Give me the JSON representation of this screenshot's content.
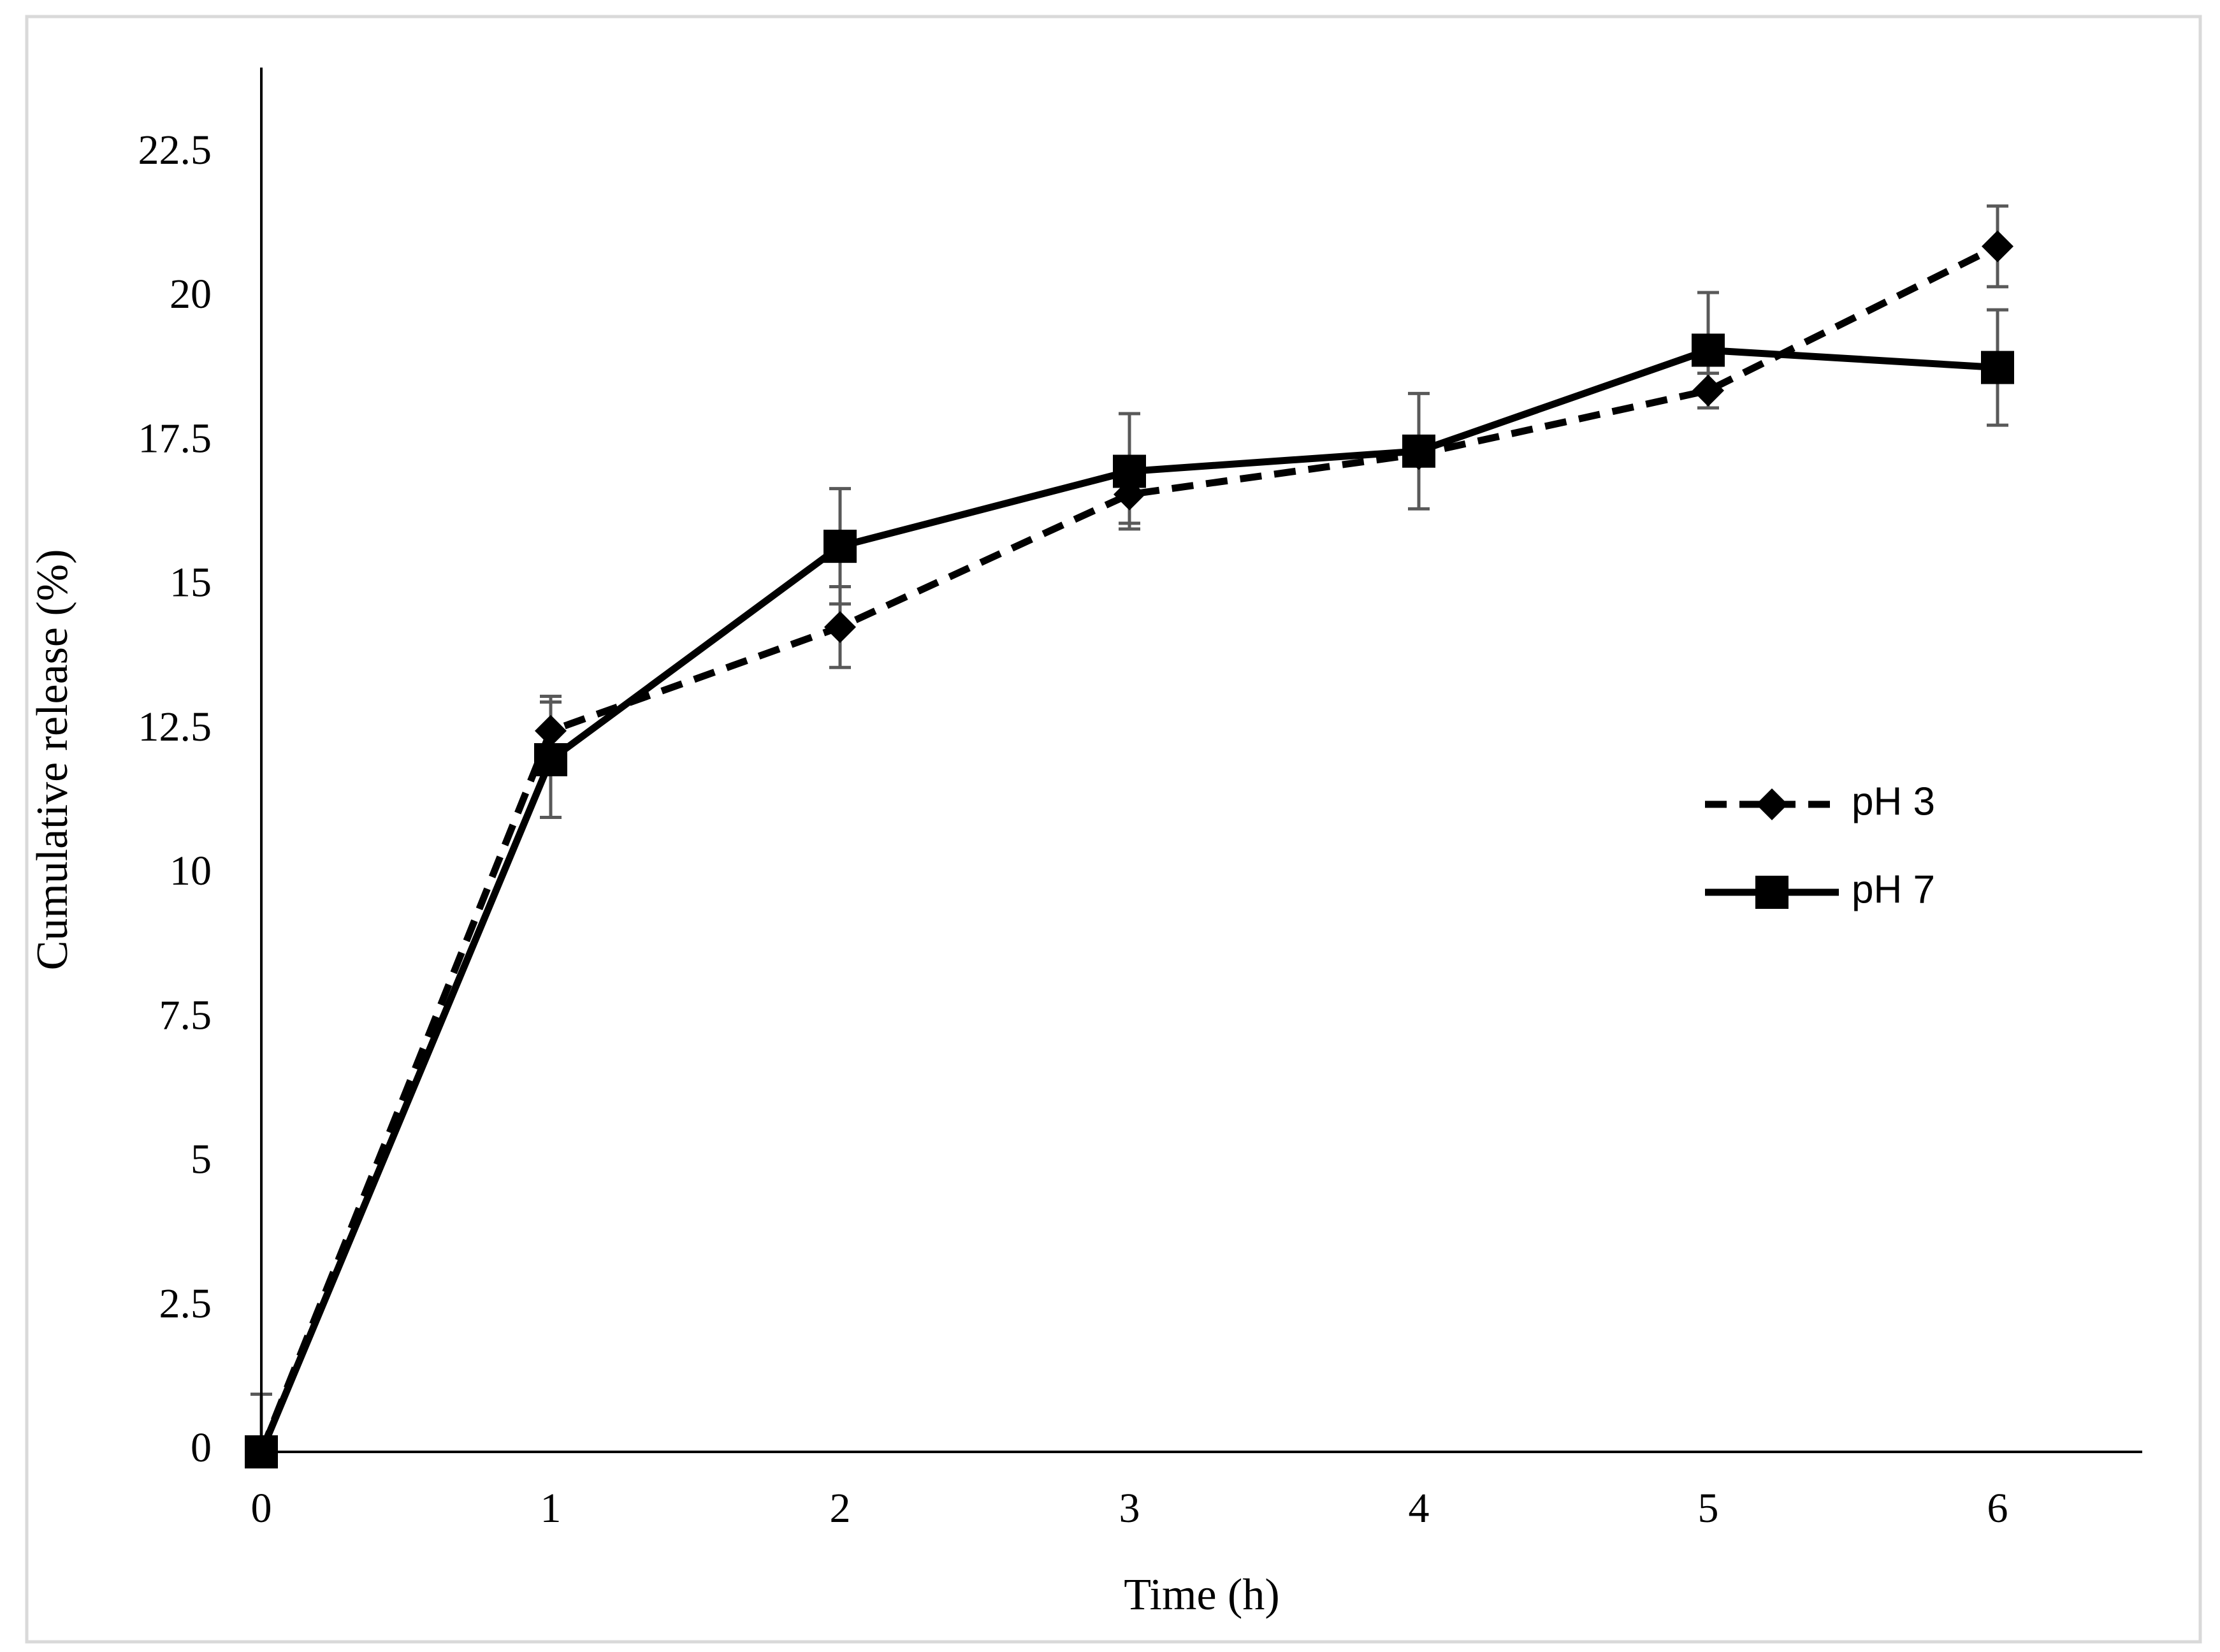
{
  "chart_data": {
    "type": "line",
    "title": "",
    "xlabel": "Time (h)",
    "ylabel": "Cumulative release (%)",
    "x": [
      0,
      1,
      2,
      3,
      4,
      5,
      6
    ],
    "xlim": [
      0,
      6.5
    ],
    "ylim": [
      0,
      24
    ],
    "yticks": [
      0,
      2.5,
      5,
      7.5,
      10,
      12.5,
      15,
      17.5,
      20,
      22.5
    ],
    "ytick_labels": [
      "0",
      "2.5",
      "5",
      "7.5",
      "10",
      "12.5",
      "15",
      "17.5",
      "20",
      "22.5"
    ],
    "xtick_labels": [
      "0",
      "1",
      "2",
      "3",
      "4",
      "5",
      "6"
    ],
    "grid": false,
    "legend_position": "right",
    "series": [
      {
        "name": "pH 3",
        "line_style": "dashed",
        "marker": "diamond",
        "color": "#000000",
        "values": [
          0,
          12.5,
          14.3,
          16.6,
          17.3,
          18.4,
          20.9
        ],
        "error": [
          1.0,
          0.6,
          0.7,
          0.5,
          0.1,
          0.3,
          0.7
        ]
      },
      {
        "name": "pH 7",
        "line_style": "solid",
        "marker": "square",
        "color": "#000000",
        "values": [
          0,
          12.0,
          15.7,
          17.0,
          17.35,
          19.1,
          18.8
        ],
        "error": [
          0.0,
          1.0,
          1.0,
          1.0,
          1.0,
          1.0,
          1.0
        ]
      }
    ],
    "error_bar_color": "#595959"
  }
}
